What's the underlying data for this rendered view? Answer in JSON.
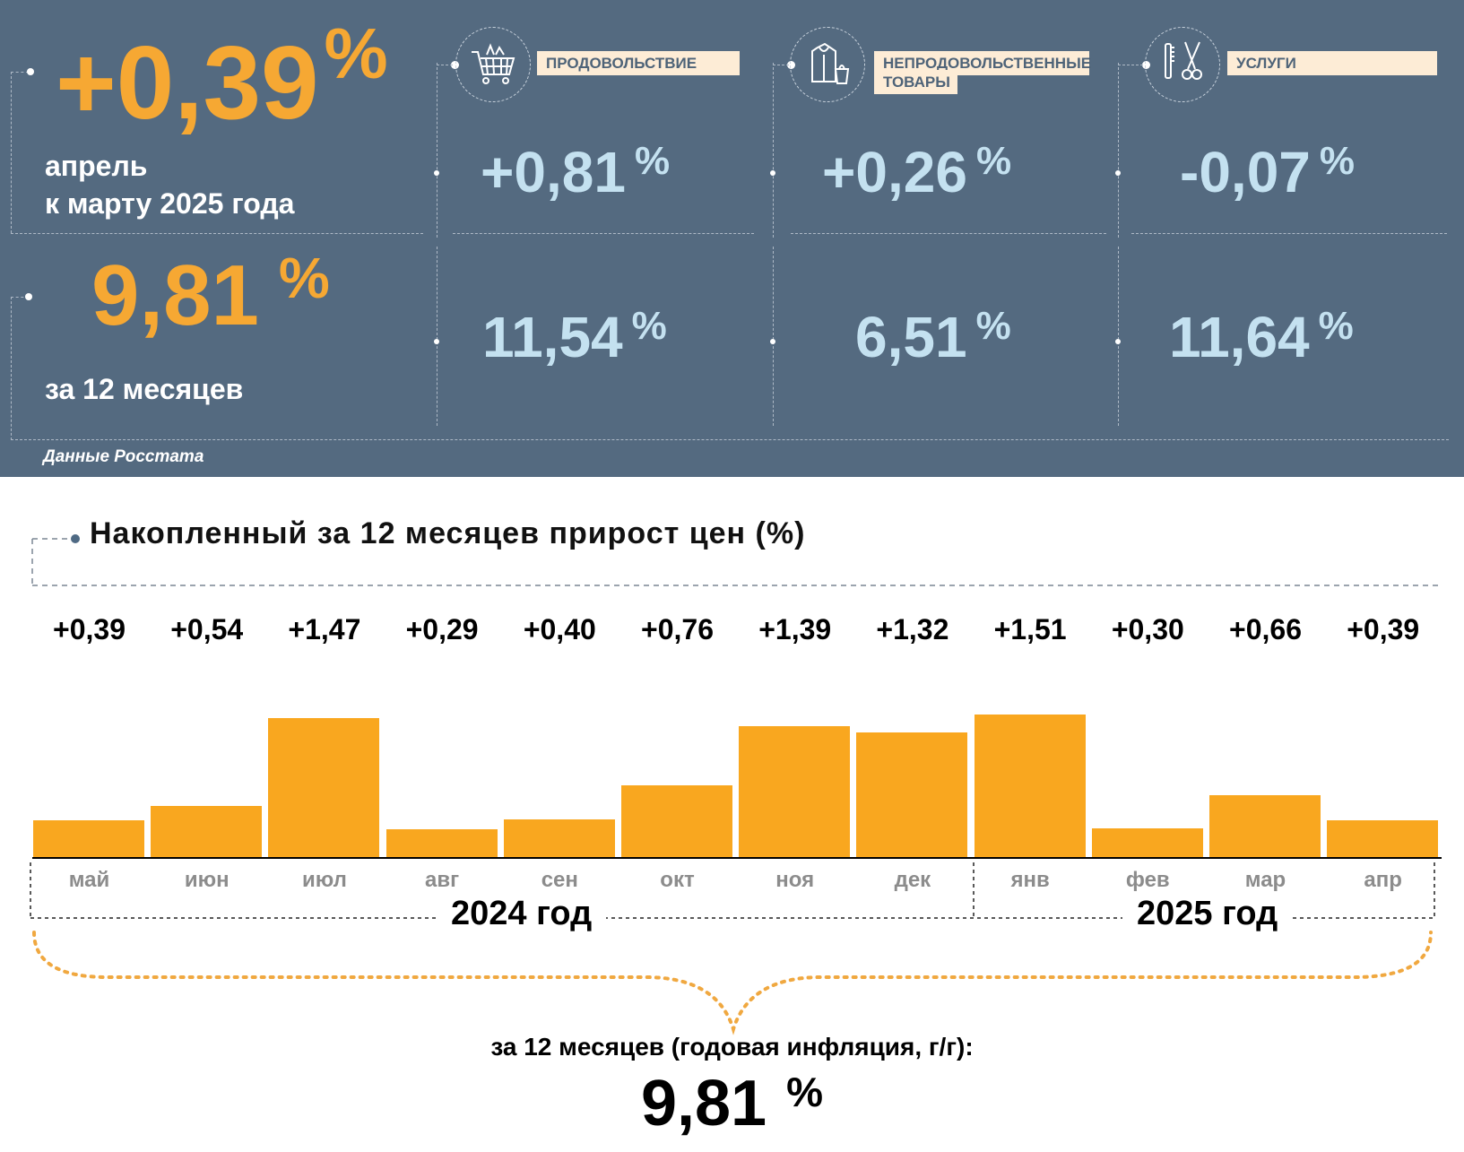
{
  "header": {
    "main_value": "+0,39",
    "main_pct": "%",
    "main_caption_line1": "апрель",
    "main_caption_line2": "к марту 2025 года",
    "annual_value": "9,81",
    "annual_pct": "%",
    "annual_caption": "за 12 месяцев",
    "source": "Данные Росстата"
  },
  "categories": [
    {
      "label": "ПРОДОВОЛЬСТВИЕ",
      "label_line2": "",
      "icon": "shopping-cart-icon",
      "monthly": "+0,81",
      "annual": "11,54",
      "pct": "%"
    },
    {
      "label": "НЕПРОДОВОЛЬСТВЕННЫЕ",
      "label_line2": "ТОВАРЫ",
      "icon": "clothing-bag-icon",
      "monthly": "+0,26",
      "annual": "6,51",
      "pct": "%"
    },
    {
      "label": "УСЛУГИ",
      "label_line2": "",
      "icon": "scissors-comb-icon",
      "monthly": "-0,07",
      "annual": "11,64",
      "pct": "%"
    }
  ],
  "chart": {
    "title": "Накопленный за 12 месяцев прирост цен (%)",
    "year_2024": "2024 год",
    "year_2025": "2025 год",
    "summary_caption": "за 12 месяцев (годовая инфляция, г/г):",
    "summary_value": "9,81",
    "summary_pct": "%"
  },
  "colors": {
    "panel": "#546a80",
    "orange": "#f6a833",
    "bar": "#f9a71f",
    "light_blue": "#c4e1f0",
    "label_bg": "#fdecd6"
  },
  "chart_data": {
    "type": "bar",
    "categories": [
      "май",
      "июн",
      "июл",
      "авг",
      "сен",
      "окт",
      "ноя",
      "дек",
      "янв",
      "фев",
      "мар",
      "апр"
    ],
    "value_labels": [
      "+0,39",
      "+0,54",
      "+1,47",
      "+0,29",
      "+0,40",
      "+0,76",
      "+1,39",
      "+1,32",
      "+1,51",
      "+0,30",
      "+0,66",
      "+0,39"
    ],
    "values": [
      0.39,
      0.54,
      1.47,
      0.29,
      0.4,
      0.76,
      1.39,
      1.32,
      1.51,
      0.3,
      0.66,
      0.39
    ],
    "title": "Накопленный за 12 месяцев прирост цен (%)",
    "xlabel": "",
    "ylabel": "",
    "ylim": [
      0,
      1.51
    ],
    "grid": false
  }
}
